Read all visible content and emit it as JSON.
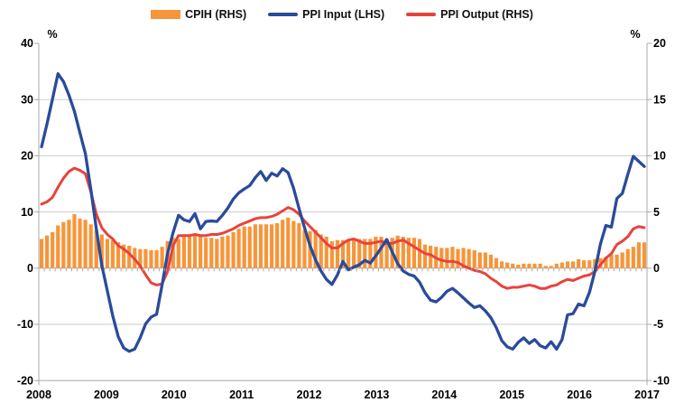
{
  "chart_data": {
    "type": "combo",
    "title": "",
    "x_axis": {
      "years": [
        "2008",
        "2009",
        "2010",
        "2011",
        "2012",
        "2013",
        "2014",
        "2015",
        "2016",
        "2017"
      ],
      "frequency": "monthly",
      "months_start": "2008-01",
      "months_end": "2017-03",
      "n_points": 111
    },
    "axes": {
      "left": {
        "unit": "%",
        "min": -20,
        "max": 40,
        "ticks": [
          40,
          30,
          20,
          10,
          0,
          -10,
          -20
        ]
      },
      "right": {
        "unit": "%",
        "min": -10,
        "max": 20,
        "ticks": [
          20,
          15,
          10,
          5,
          0,
          -5,
          -10
        ]
      }
    },
    "grid": "horizontal",
    "legend_position": "top-center",
    "colors": {
      "cpih": "#F79539",
      "ppi_input": "#2A4B9B",
      "ppi_output": "#E8433C",
      "gridline": "#CDCDCD",
      "axis": "#A8A8A8",
      "text": "#000000"
    },
    "series": [
      {
        "name": "CPIH (RHS)",
        "type": "bar",
        "axis": "right",
        "color": "#F79539",
        "values": [
          2.6,
          2.9,
          3.2,
          3.8,
          4.1,
          4.3,
          4.8,
          4.4,
          4.3,
          3.9,
          3.4,
          3.0,
          2.6,
          2.5,
          2.3,
          2.1,
          2.0,
          1.8,
          1.7,
          1.7,
          1.6,
          1.6,
          1.9,
          2.4,
          2.7,
          2.6,
          2.8,
          3.0,
          2.9,
          2.8,
          2.7,
          2.7,
          2.6,
          2.8,
          2.9,
          3.2,
          3.5,
          3.7,
          3.7,
          3.9,
          3.9,
          3.9,
          3.9,
          4.0,
          4.3,
          4.5,
          4.2,
          4.0,
          3.4,
          3.3,
          3.4,
          3.0,
          2.8,
          2.4,
          2.5,
          2.5,
          2.5,
          2.6,
          2.6,
          2.6,
          2.6,
          2.8,
          2.8,
          2.6,
          2.7,
          2.9,
          2.8,
          2.7,
          2.7,
          2.6,
          2.1,
          2.0,
          1.9,
          1.8,
          1.8,
          1.9,
          1.7,
          1.8,
          1.7,
          1.6,
          1.4,
          1.4,
          1.2,
          0.9,
          0.6,
          0.5,
          0.4,
          0.3,
          0.4,
          0.4,
          0.4,
          0.4,
          0.2,
          0.2,
          0.4,
          0.5,
          0.6,
          0.6,
          0.8,
          0.7,
          0.7,
          0.8,
          0.9,
          1.0,
          1.2,
          1.2,
          1.4,
          1.7,
          1.9,
          2.3,
          2.3
        ]
      },
      {
        "name": "PPI Input (LHS)",
        "type": "line",
        "axis": "left",
        "color": "#2A4B9B",
        "values": [
          21.6,
          25.7,
          30.1,
          34.6,
          33.2,
          30.8,
          27.9,
          24.1,
          20.4,
          14.0,
          7.0,
          0.5,
          -4.0,
          -8.5,
          -12.2,
          -14.2,
          -14.8,
          -14.4,
          -12.4,
          -9.9,
          -8.7,
          -8.2,
          -3.0,
          2.6,
          6.3,
          9.4,
          8.6,
          8.3,
          9.7,
          7.0,
          8.3,
          8.4,
          8.3,
          9.4,
          10.7,
          12.3,
          13.4,
          14.1,
          14.7,
          16.1,
          17.2,
          15.6,
          16.9,
          16.4,
          17.7,
          17.0,
          14.2,
          10.6,
          7.2,
          4.0,
          1.5,
          -0.5,
          -2.0,
          -2.9,
          -1.2,
          1.2,
          -0.3,
          0.2,
          0.6,
          1.4,
          0.9,
          2.2,
          3.6,
          5.1,
          2.9,
          0.8,
          -0.5,
          -1.1,
          -1.4,
          -2.5,
          -4.4,
          -5.7,
          -6.0,
          -5.2,
          -4.1,
          -3.6,
          -4.4,
          -5.3,
          -6.2,
          -7.0,
          -6.7,
          -7.6,
          -8.8,
          -10.6,
          -12.9,
          -14.0,
          -14.4,
          -13.2,
          -12.4,
          -13.4,
          -12.7,
          -13.8,
          -14.2,
          -13.1,
          -14.4,
          -12.7,
          -8.3,
          -8.1,
          -6.4,
          -6.7,
          -4.3,
          -0.5,
          4.3,
          7.6,
          7.3,
          12.4,
          13.3,
          16.7,
          19.9,
          19.0,
          18.1
        ]
      },
      {
        "name": "PPI Output (RHS)",
        "type": "line",
        "axis": "right",
        "color": "#E8433C",
        "values": [
          5.7,
          5.9,
          6.3,
          7.2,
          8.0,
          8.6,
          8.9,
          8.7,
          8.4,
          6.8,
          4.8,
          3.6,
          3.0,
          2.6,
          2.0,
          1.7,
          1.3,
          0.8,
          0.2,
          -0.6,
          -1.3,
          -1.5,
          -1.4,
          -0.3,
          2.0,
          2.9,
          2.9,
          2.9,
          3.0,
          2.9,
          2.9,
          3.0,
          3.0,
          3.1,
          3.3,
          3.5,
          3.8,
          4.0,
          4.2,
          4.4,
          4.5,
          4.5,
          4.6,
          4.8,
          5.1,
          5.4,
          5.2,
          4.8,
          4.2,
          3.7,
          3.2,
          2.7,
          2.2,
          1.8,
          1.8,
          2.2,
          2.5,
          2.6,
          2.4,
          2.2,
          2.2,
          2.3,
          2.4,
          2.2,
          2.2,
          2.4,
          2.5,
          2.2,
          1.9,
          1.6,
          1.3,
          1.2,
          0.9,
          0.7,
          0.6,
          0.6,
          0.5,
          0.2,
          0.0,
          -0.2,
          -0.3,
          -0.5,
          -0.9,
          -1.2,
          -1.6,
          -1.8,
          -1.7,
          -1.7,
          -1.6,
          -1.5,
          -1.6,
          -1.8,
          -1.8,
          -1.6,
          -1.5,
          -1.2,
          -1.0,
          -1.1,
          -0.9,
          -0.7,
          -0.6,
          -0.3,
          0.3,
          0.9,
          1.3,
          2.1,
          2.4,
          2.8,
          3.5,
          3.7,
          3.6
        ]
      }
    ]
  }
}
